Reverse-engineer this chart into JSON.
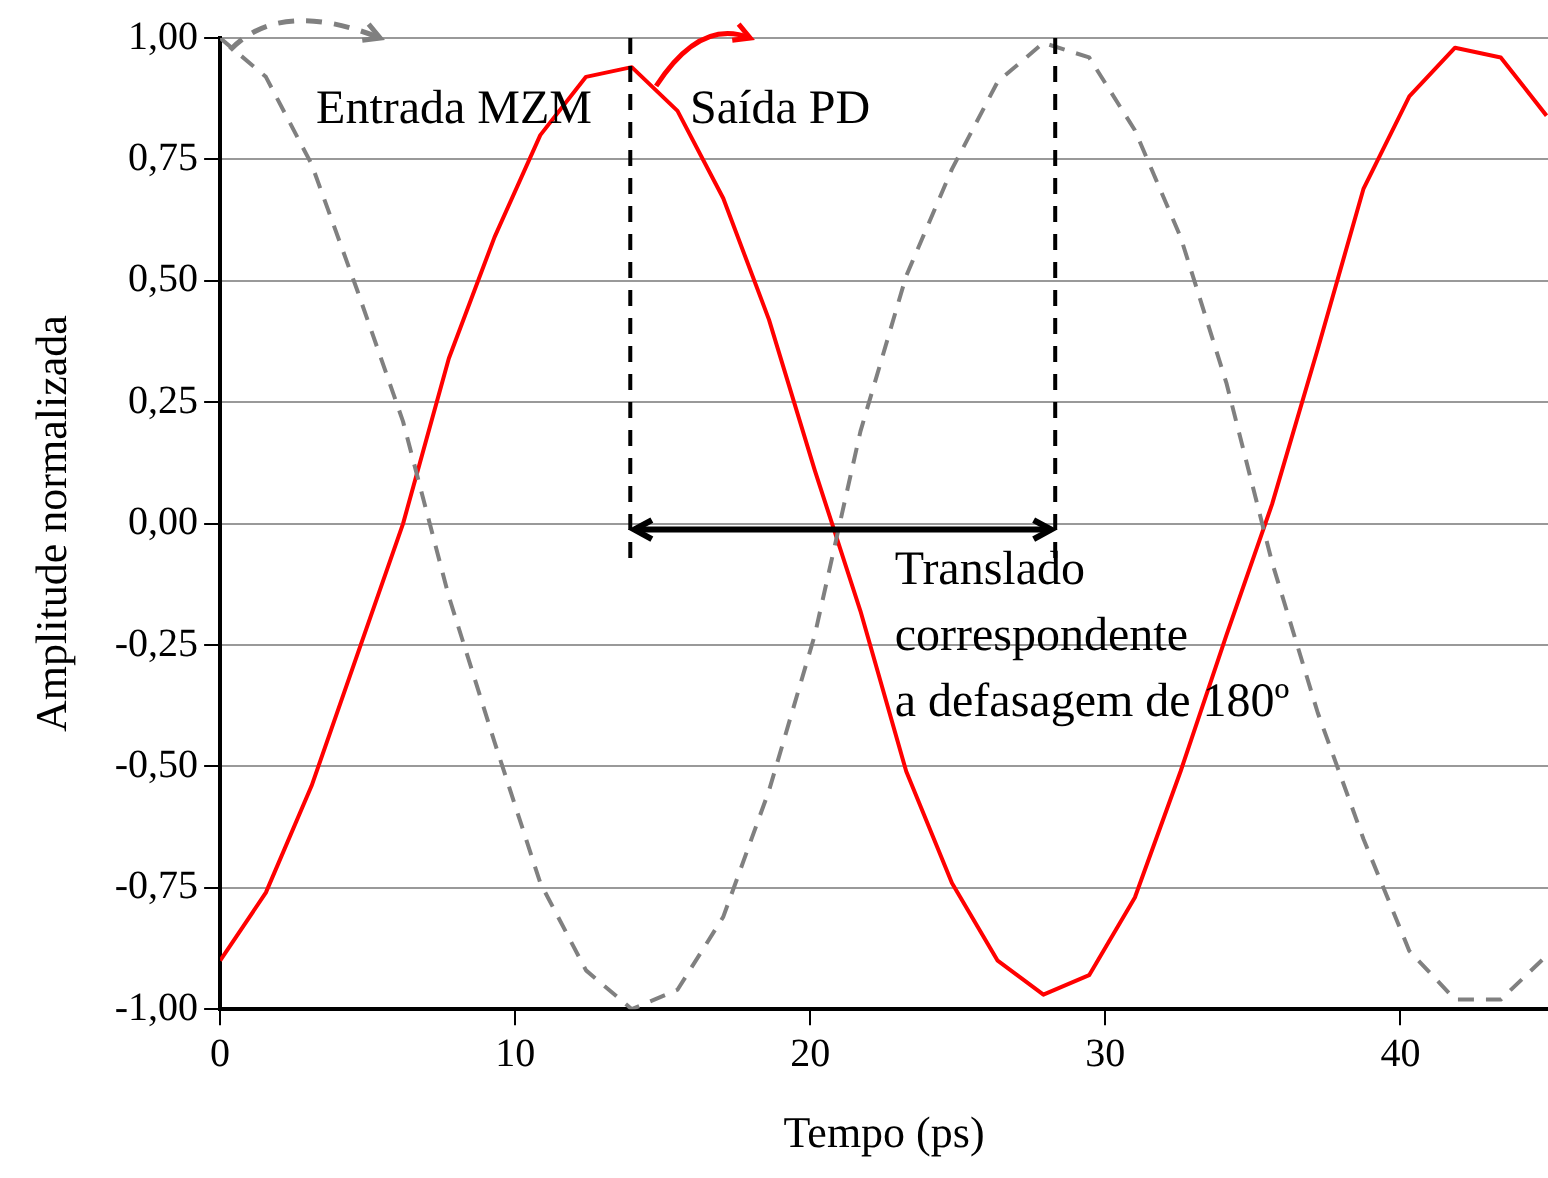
{
  "chart_data": {
    "type": "line",
    "xlabel": "Tempo (ps)",
    "ylabel": "Amplitude normalizada",
    "x": [
      0,
      1.55,
      3.1,
      4.65,
      6.2,
      7.75,
      9.3,
      10.85,
      12.4,
      13.95,
      15.5,
      17.05,
      18.6,
      20.15,
      21.7,
      23.25,
      24.8,
      26.35,
      27.9,
      29.45,
      31,
      32.55,
      34.1,
      35.65,
      37.2,
      38.75,
      40.3,
      41.85,
      43.4,
      44.95
    ],
    "series": [
      {
        "name": "Entrada MZM",
        "color": "#808080",
        "line_style": "dashed",
        "values": [
          1.0,
          0.92,
          0.74,
          0.48,
          0.21,
          -0.15,
          -0.45,
          -0.74,
          -0.92,
          -1.0,
          -0.96,
          -0.81,
          -0.55,
          -0.23,
          0.19,
          0.51,
          0.73,
          0.91,
          0.99,
          0.96,
          0.81,
          0.59,
          0.29,
          -0.08,
          -0.39,
          -0.65,
          -0.88,
          -0.98,
          -0.98,
          -0.89
        ]
      },
      {
        "name": "Saída PD",
        "color": "#ff0000",
        "line_style": "solid",
        "values": [
          -0.9,
          -0.76,
          -0.54,
          -0.27,
          0.0,
          0.34,
          0.59,
          0.8,
          0.92,
          0.94,
          0.85,
          0.67,
          0.42,
          0.11,
          -0.18,
          -0.51,
          -0.74,
          -0.9,
          -0.97,
          -0.93,
          -0.77,
          -0.51,
          -0.23,
          0.04,
          0.36,
          0.69,
          0.88,
          0.98,
          0.96,
          0.84
        ]
      }
    ],
    "xlim": [
      0,
      45
    ],
    "xticks": [
      0,
      10,
      20,
      30,
      40
    ],
    "ylim": [
      -1,
      1
    ],
    "yticks": [
      {
        "value": -1,
        "label": "-1,00"
      },
      {
        "value": -0.75,
        "label": "-0,75"
      },
      {
        "value": -0.5,
        "label": "-0,50"
      },
      {
        "value": -0.25,
        "label": "-0,25"
      },
      {
        "value": 0,
        "label": "0,00"
      },
      {
        "value": 0.25,
        "label": "0,25"
      },
      {
        "value": 0.5,
        "label": "0,50"
      },
      {
        "value": 0.75,
        "label": "0,75"
      },
      {
        "value": 1,
        "label": "1,00"
      }
    ],
    "grid": "y",
    "legend": "top",
    "marker": "none",
    "ref_lines": [
      {
        "axis": "x",
        "value": 13.9,
        "color": "#000000",
        "line_style": "dashed"
      },
      {
        "axis": "x",
        "value": 28.3,
        "color": "#000000",
        "line_style": "dashed"
      }
    ],
    "annotations": [
      {
        "text": "Translado\ncorrespondente\na defasagem de 180º",
        "x": 21.1,
        "y": 0
      }
    ]
  }
}
